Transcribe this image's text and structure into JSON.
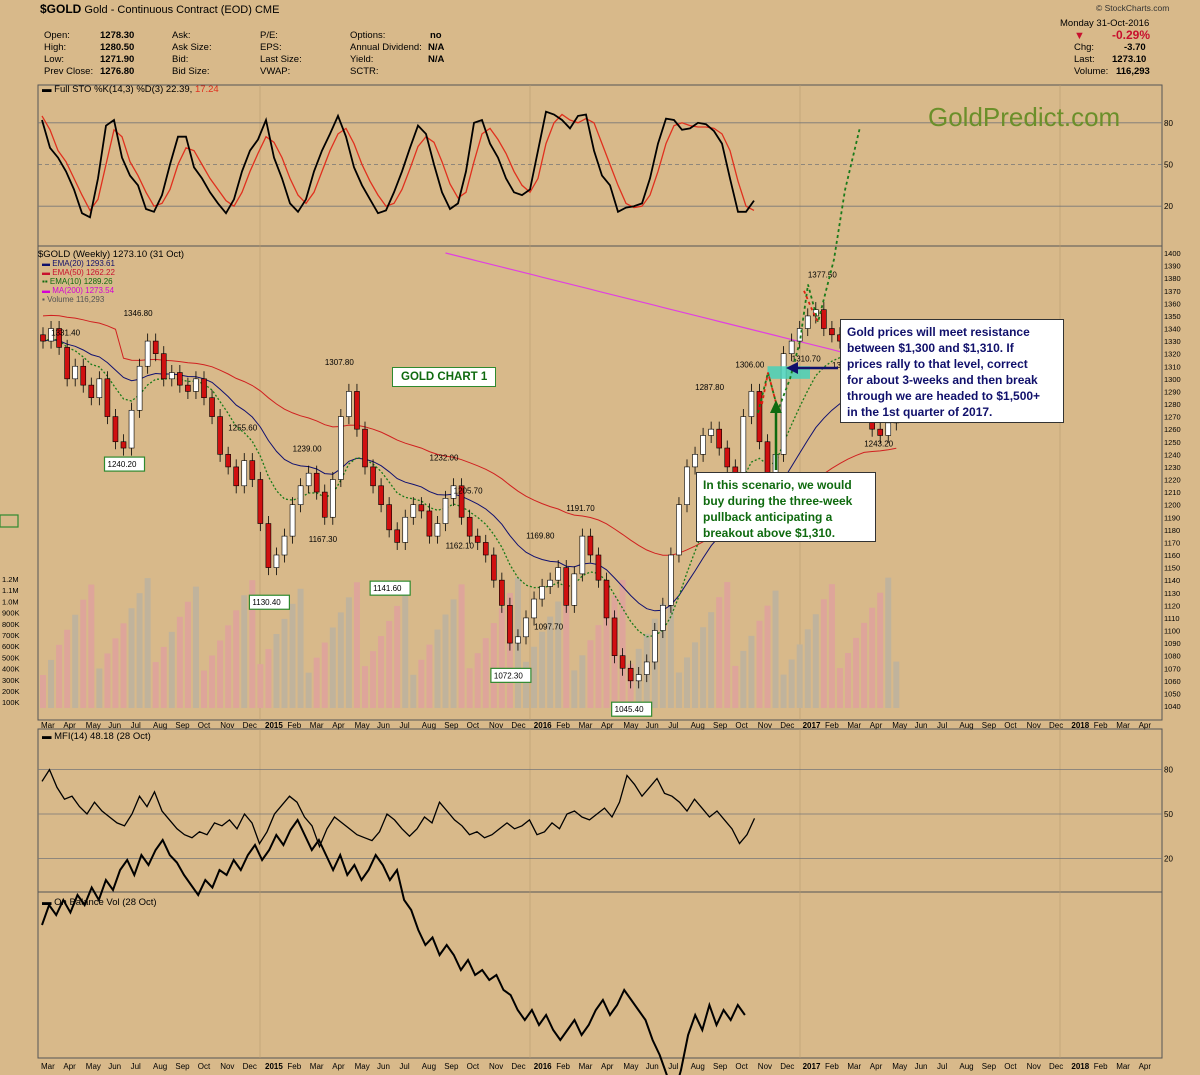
{
  "header": {
    "symbol": "$GOLD",
    "name": "Gold - Continuous Contract (EOD)",
    "exchange": "CME",
    "source": "© StockCharts.com",
    "date": "Monday  31-Oct-2016",
    "pct_change": "-0.29%",
    "chg_label": "Chg:",
    "chg_value": "-3.70",
    "last_label": "Last:",
    "last_value": "1273.10",
    "volume_label": "Volume:",
    "volume_value": "116,293",
    "open_label": "Open:",
    "open": "1278.30",
    "high_label": "High:",
    "high": "1280.50",
    "low_label": "Low:",
    "low": "1271.90",
    "prev_label": "Prev Close:",
    "prev": "1276.80",
    "ask_label": "Ask:",
    "asksize_label": "Ask Size:",
    "bid_label": "Bid:",
    "bidsize_label": "Bid Size:",
    "pe_label": "P/E:",
    "eps_label": "EPS:",
    "lastsize_label": "Last Size:",
    "vwap_label": "VWAP:",
    "options_label": "Options:",
    "options": "no",
    "div_label": "Annual Dividend:",
    "div": "N/A",
    "yield_label": "Yield:",
    "yield": "N/A",
    "sctr_label": "SCTR:"
  },
  "watermark": "GoldPredict.com",
  "sto": {
    "label": "Full STO %K(14,3) %D(3) 22.39,",
    "label2": "17.24",
    "levels": [
      "80",
      "50",
      "20"
    ],
    "k": [
      82,
      62,
      55,
      45,
      32,
      15,
      12,
      40,
      78,
      82,
      55,
      42,
      35,
      18,
      16,
      28,
      50,
      70,
      70,
      48,
      40,
      30,
      22,
      15,
      25,
      45,
      60,
      68,
      82,
      55,
      40,
      22,
      16,
      25,
      45,
      60,
      72,
      85,
      70,
      48,
      35,
      25,
      15,
      17,
      30,
      45,
      62,
      78,
      72,
      50,
      30,
      18,
      22,
      45,
      80,
      82,
      65,
      55,
      40,
      30,
      28,
      32,
      60,
      88,
      86,
      82,
      76,
      85,
      86,
      60,
      42,
      35,
      16,
      19,
      20,
      22,
      40,
      65,
      83,
      82,
      75,
      76,
      80,
      79,
      74,
      65,
      40,
      16,
      16,
      24
    ],
    "d": [
      85,
      75,
      60,
      52,
      40,
      28,
      17,
      25,
      50,
      75,
      70,
      52,
      42,
      30,
      20,
      22,
      32,
      50,
      62,
      60,
      50,
      40,
      32,
      24,
      20,
      30,
      45,
      58,
      70,
      66,
      55,
      40,
      28,
      22,
      30,
      45,
      60,
      72,
      76,
      65,
      50,
      38,
      28,
      20,
      22,
      32,
      47,
      63,
      70,
      66,
      52,
      36,
      26,
      30,
      52,
      72,
      76,
      68,
      58,
      45,
      35,
      30,
      40,
      65,
      80,
      86,
      82,
      80,
      83,
      80,
      65,
      50,
      35,
      22,
      19,
      20,
      28,
      45,
      65,
      78,
      80,
      78,
      77,
      77,
      76,
      72,
      60,
      38,
      20,
      17
    ]
  },
  "price": {
    "legend": "$GOLD (Weekly) 1273.10 (31 Oct)",
    "ema20": "EMA(20) 1293.61",
    "ema50": "EMA(50) 1262.22",
    "ema10": "EMA(10) 1289.26",
    "ma200": "MA(200) 1273.54",
    "vol": "Volume 116,293",
    "yticks": [
      "1400",
      "1390",
      "1380",
      "1370",
      "1360",
      "1350",
      "1340",
      "1330",
      "1320",
      "1310",
      "1300",
      "1290",
      "1280",
      "1270",
      "1260",
      "1250",
      "1240",
      "1230",
      "1220",
      "1210",
      "1200",
      "1190",
      "1180",
      "1170",
      "1160",
      "1150",
      "1140",
      "1130",
      "1120",
      "1110",
      "1100",
      "1090",
      "1080",
      "1070",
      "1060",
      "1050",
      "1040"
    ],
    "voltick": [
      "1.2M",
      "1.1M",
      "1.0M",
      "900K",
      "800K",
      "700K",
      "600K",
      "500K",
      "400K",
      "300K",
      "200K",
      "100K"
    ],
    "labels": [
      {
        "t": "1331.40",
        "v": 1331.4,
        "i": 3,
        "box": false
      },
      {
        "t": "1346.80",
        "v": 1346.8,
        "i": 12,
        "box": false
      },
      {
        "t": "1240.20",
        "v": 1240.2,
        "i": 10,
        "box": true
      },
      {
        "t": "1255.60",
        "v": 1255.6,
        "i": 25,
        "box": false
      },
      {
        "t": "1239.00",
        "v": 1239.0,
        "i": 33,
        "box": false
      },
      {
        "t": "1130.40",
        "v": 1130.4,
        "i": 28,
        "box": true
      },
      {
        "t": "1167.30",
        "v": 1167.3,
        "i": 35,
        "box": false
      },
      {
        "t": "1307.80",
        "v": 1307.8,
        "i": 37,
        "box": false
      },
      {
        "t": "1141.60",
        "v": 1141.6,
        "i": 43,
        "box": true
      },
      {
        "t": "1232.00",
        "v": 1232.0,
        "i": 50,
        "box": false
      },
      {
        "t": "1205.70",
        "v": 1205.7,
        "i": 53,
        "box": false
      },
      {
        "t": "1162.10",
        "v": 1162.1,
        "i": 52,
        "box": false
      },
      {
        "t": "1169.80",
        "v": 1169.8,
        "i": 62,
        "box": false
      },
      {
        "t": "1072.30",
        "v": 1072.3,
        "i": 58,
        "box": true
      },
      {
        "t": "1097.70",
        "v": 1097.7,
        "i": 63,
        "box": false
      },
      {
        "t": "1191.70",
        "v": 1191.7,
        "i": 67,
        "box": false
      },
      {
        "t": "1045.40",
        "v": 1045.4,
        "i": 73,
        "box": true
      },
      {
        "t": "1287.80",
        "v": 1287.8,
        "i": 83,
        "box": false
      },
      {
        "t": "1206.00",
        "v": 1206.0,
        "i": 84,
        "box": false
      },
      {
        "t": "1306.00",
        "v": 1306.0,
        "i": 88,
        "box": false
      },
      {
        "t": "1201.50",
        "v": 1201.5,
        "i": 90,
        "box": false
      },
      {
        "t": "1377.50",
        "v": 1377.5,
        "i": 97,
        "box": false
      },
      {
        "t": "1310.70",
        "v": 1310.7,
        "i": 95,
        "box": false
      },
      {
        "t": "1305.50",
        "v": 1305.5,
        "i": 100,
        "box": false
      },
      {
        "t": "1243.20",
        "v": 1243.2,
        "i": 104,
        "box": false
      }
    ]
  },
  "xaxis": [
    "Mar",
    "Apr",
    "May",
    "Jun",
    "Jul",
    "Aug",
    "Sep",
    "Oct",
    "Nov",
    "Dec",
    "2015",
    "Feb",
    "Mar",
    "Apr",
    "May",
    "Jun",
    "Jul",
    "Aug",
    "Sep",
    "Oct",
    "Nov",
    "Dec",
    "2016",
    "Feb",
    "Mar",
    "Apr",
    "May",
    "Jun",
    "Jul",
    "Aug",
    "Sep",
    "Oct",
    "Nov",
    "Dec",
    "2017",
    "Feb",
    "Mar",
    "Apr",
    "May",
    "Jun",
    "Jul",
    "Aug",
    "Sep",
    "Oct",
    "Nov",
    "Dec",
    "2018",
    "Feb",
    "Mar",
    "Apr"
  ],
  "annotations": {
    "chart1": "GOLD CHART 1",
    "resistance": [
      "Gold prices will meet resistance",
      "between $1,300 and $1,310. If",
      "prices rally to that level, correct",
      "for about 3-weeks and then break",
      "through we are headed to $1,500+",
      "in the 1st quarter of 2017."
    ],
    "scenario": [
      "In this scenario, we would",
      "buy during the three-week",
      "pullback anticipating a",
      "breakout above $1,310."
    ],
    "colors": {
      "accent_blue": "#10106b",
      "green": "#0f6a0f",
      "teal": "#48d1b8",
      "red": "#c8102e"
    }
  },
  "mfi": {
    "label": "MFI(14) 48.18 (28 Oct)",
    "levels": [
      "80",
      "50",
      "20"
    ],
    "values": [
      72,
      80,
      68,
      60,
      62,
      55,
      50,
      58,
      52,
      48,
      44,
      42,
      50,
      62,
      55,
      65,
      52,
      46,
      40,
      36,
      34,
      38,
      36,
      44,
      42,
      46,
      40,
      50,
      44,
      30,
      38,
      50,
      56,
      62,
      58,
      48,
      42,
      28,
      40,
      48,
      44,
      40,
      36,
      34,
      32,
      38,
      50,
      46,
      40,
      35,
      40,
      48,
      44,
      58,
      52,
      46,
      42,
      36,
      38,
      34,
      36,
      40,
      44,
      40,
      42,
      46,
      36,
      38,
      44,
      40,
      50,
      52,
      48,
      46,
      50,
      54,
      48,
      58,
      76,
      70,
      62,
      68,
      74,
      64,
      62,
      58,
      52,
      60,
      54,
      48,
      52,
      46,
      40,
      30,
      36,
      47
    ]
  },
  "obv": {
    "label": "On Balance Vol (28 Oct)",
    "values": [
      30,
      38,
      34,
      40,
      35,
      42,
      38,
      45,
      40,
      48,
      44,
      52,
      56,
      50,
      58,
      54,
      60,
      64,
      58,
      55,
      50,
      46,
      42,
      48,
      45,
      52,
      50,
      56,
      52,
      58,
      62,
      56,
      60,
      66,
      62,
      68,
      72,
      66,
      60,
      64,
      58,
      52,
      58,
      50,
      54,
      48,
      52,
      58,
      54,
      48,
      52,
      40,
      36,
      28,
      22,
      25,
      18,
      22,
      18,
      12,
      16,
      10,
      12,
      8,
      10,
      4,
      2,
      -4,
      -8,
      -4,
      -10,
      -6,
      -12,
      -16,
      -12,
      -8,
      -14,
      -10,
      -4,
      0,
      -6,
      -2,
      4,
      0,
      -4,
      -8,
      -16,
      -22,
      -30,
      -38,
      -28,
      -14,
      -6,
      -12,
      -2,
      -10,
      -4,
      -8,
      -2,
      -6
    ]
  }
}
